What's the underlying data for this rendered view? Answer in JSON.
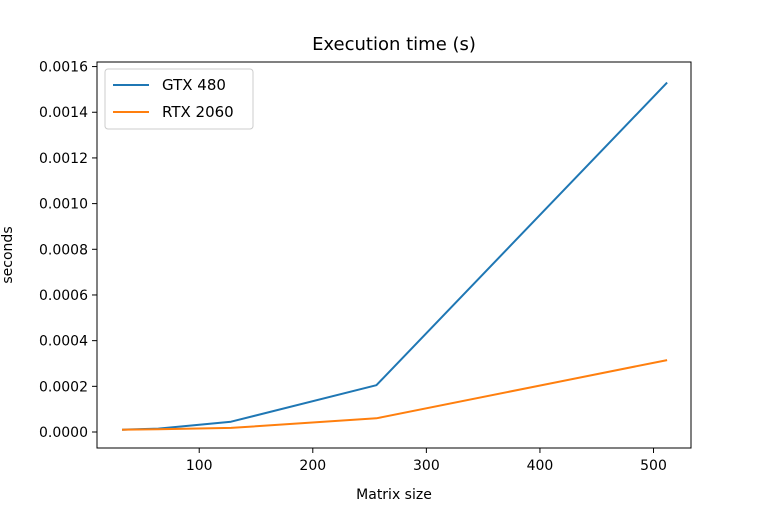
{
  "chart_data": {
    "type": "line",
    "title": "Execution time (s)",
    "xlabel": "Matrix size",
    "ylabel": "seconds",
    "x": [
      32,
      64,
      128,
      256,
      512
    ],
    "xlim": [
      10,
      533
    ],
    "ylim": [
      -7e-05,
      0.00162
    ],
    "xticks": [
      100,
      200,
      300,
      400,
      500
    ],
    "yticks": [
      "0.0000",
      "0.0002",
      "0.0004",
      "0.0006",
      "0.0008",
      "0.0010",
      "0.0012",
      "0.0014",
      "0.0016"
    ],
    "ytick_values": [
      0,
      0.0002,
      0.0004,
      0.0006,
      0.0008,
      0.001,
      0.0012,
      0.0014,
      0.0016
    ],
    "grid": false,
    "legend_position": "top-left",
    "series": [
      {
        "name": "GTX 480",
        "color": "#1f77b4",
        "values": [
          1e-05,
          1.5e-05,
          4.5e-05,
          0.000205,
          0.00153
        ]
      },
      {
        "name": "RTX 2060",
        "color": "#ff7f0e",
        "values": [
          1e-05,
          1.2e-05,
          1.8e-05,
          6e-05,
          0.000315
        ]
      }
    ]
  }
}
